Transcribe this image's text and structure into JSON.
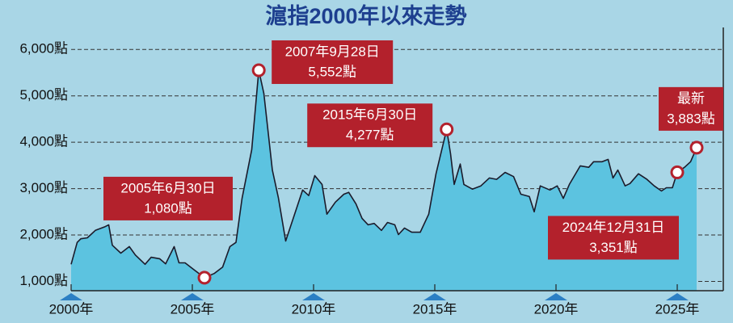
{
  "chart_data": {
    "type": "area",
    "title": "滬指2000年以來走勢",
    "color": "#5cc3e0",
    "line_color": "#1b1b2b",
    "grid": true,
    "xlim": [
      2000,
      2026.9
    ],
    "ylim": [
      800,
      6300
    ],
    "xticks": [
      {
        "value": 2000,
        "label": "2000年"
      },
      {
        "value": 2005,
        "label": "2005年"
      },
      {
        "value": 2010,
        "label": "2010年"
      },
      {
        "value": 2015,
        "label": "2015年"
      },
      {
        "value": 2020,
        "label": "2020年"
      },
      {
        "value": 2025,
        "label": "2025年"
      }
    ],
    "yticks": [
      {
        "value": 1000,
        "label": "1,000點"
      },
      {
        "value": 2000,
        "label": "2,000點"
      },
      {
        "value": 3000,
        "label": "3,000點"
      },
      {
        "value": 4000,
        "label": "4,000點"
      },
      {
        "value": 5000,
        "label": "5,000點"
      },
      {
        "value": 6000,
        "label": "6,000點"
      }
    ],
    "x": [
      2000.0,
      2000.25,
      2000.4,
      2000.67,
      2001.0,
      2001.4,
      2001.55,
      2001.7,
      2002.05,
      2002.4,
      2002.65,
      2003.05,
      2003.3,
      2003.65,
      2003.9,
      2004.25,
      2004.45,
      2004.7,
      2005.05,
      2005.5,
      2005.9,
      2006.25,
      2006.55,
      2006.8,
      2007.05,
      2007.45,
      2007.74,
      2007.95,
      2008.3,
      2008.55,
      2008.85,
      2009.55,
      2009.8,
      2010.05,
      2010.35,
      2010.55,
      2010.9,
      2011.25,
      2011.45,
      2011.75,
      2012.0,
      2012.25,
      2012.5,
      2012.8,
      2013.05,
      2013.35,
      2013.5,
      2013.75,
      2014.05,
      2014.4,
      2014.75,
      2015.05,
      2015.49,
      2015.65,
      2015.8,
      2016.05,
      2016.2,
      2016.55,
      2016.9,
      2017.25,
      2017.55,
      2017.9,
      2018.25,
      2018.55,
      2018.9,
      2019.1,
      2019.35,
      2019.75,
      2020.05,
      2020.3,
      2020.55,
      2021.0,
      2021.35,
      2021.55,
      2021.9,
      2022.15,
      2022.35,
      2022.55,
      2022.85,
      2023.05,
      2023.4,
      2023.75,
      2024.05,
      2024.35,
      2024.55,
      2024.8,
      2025.0,
      2025.3,
      2025.55,
      2025.8
    ],
    "values": [
      1370,
      1840,
      1920,
      1940,
      2100,
      2180,
      2220,
      1780,
      1610,
      1750,
      1570,
      1370,
      1520,
      1490,
      1380,
      1750,
      1400,
      1400,
      1260,
      1080,
      1170,
      1310,
      1750,
      1840,
      2790,
      3840,
      5552,
      5050,
      3400,
      2800,
      1870,
      2970,
      2850,
      3280,
      3090,
      2450,
      2710,
      2880,
      2920,
      2670,
      2360,
      2220,
      2250,
      2100,
      2270,
      2220,
      2010,
      2150,
      2060,
      2060,
      2450,
      3320,
      4277,
      3750,
      3090,
      3530,
      3090,
      2990,
      3060,
      3230,
      3200,
      3350,
      3260,
      2880,
      2830,
      2500,
      3060,
      2970,
      3060,
      2790,
      3090,
      3490,
      3460,
      3580,
      3580,
      3630,
      3230,
      3400,
      3060,
      3110,
      3320,
      3200,
      3060,
      2950,
      3020,
      3020,
      3351,
      3460,
      3580,
      3883
    ],
    "annotations": [
      {
        "x": 2005.5,
        "value": 1080,
        "label": "2005年6月30日",
        "value_label": "1,080點"
      },
      {
        "x": 2007.74,
        "value": 5552,
        "label": "2007年9月28日",
        "value_label": "5,552點"
      },
      {
        "x": 2015.49,
        "value": 4277,
        "label": "2015年6月30日",
        "value_label": "4,277點"
      },
      {
        "x": 2025.0,
        "value": 3351,
        "label": "2024年12月31日",
        "value_label": "3,351點"
      },
      {
        "x": 2025.8,
        "value": 3883,
        "label": "最新",
        "value_label": "3,883點"
      }
    ]
  }
}
